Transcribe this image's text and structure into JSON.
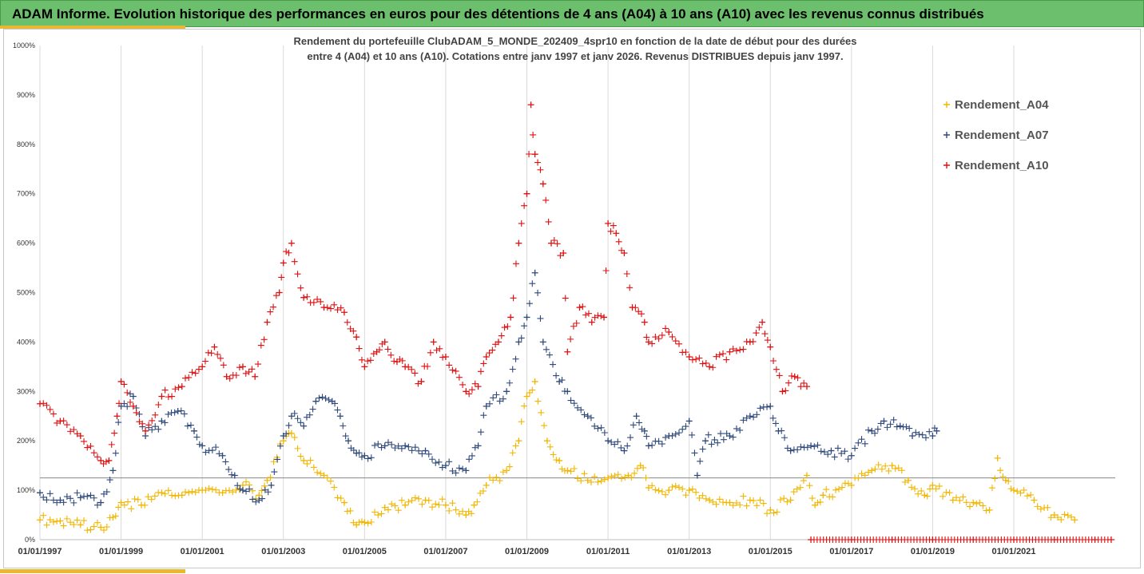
{
  "header": {
    "title": "ADAM Informe. Evolution historique des performances en euros pour des détentions de 4 ans (A04) à 10 ans (A10) avec les revenus connus distribués"
  },
  "colors": {
    "banner": "#6cbf6c",
    "accent_yellow": "#e8b830",
    "A04": "#f2b600",
    "A07": "#2f4a7a",
    "A10": "#e01010"
  },
  "chart_data": {
    "type": "scatter",
    "subtitle_line1": "Rendement du portefeuille ClubADAM_5_MONDE_202409_4spr10  en fonction de la date de début pour des durées",
    "subtitle_line2": "entre 4 (A04) et 10 ans (A10). Cotations entre janv 1997 et janv 2026. Revenus DISTRIBUES depuis janv 1997.",
    "ylim": [
      0,
      1000
    ],
    "y_ticks": [
      "0%",
      "100%",
      "200%",
      "300%",
      "400%",
      "500%",
      "600%",
      "700%",
      "800%",
      "900%",
      "1000%"
    ],
    "x_range": [
      1997.0,
      2023.5
    ],
    "x_ticks": [
      "01/01/1997",
      "01/01/1999",
      "01/01/2001",
      "01/01/2003",
      "01/01/2005",
      "01/01/2007",
      "01/01/2009",
      "01/01/2011",
      "01/01/2013",
      "01/01/2015",
      "01/01/2017",
      "01/01/2019",
      "01/01/2021"
    ],
    "grid": true,
    "reference_line_y": 125,
    "legend_position": "right",
    "marker": "+",
    "series": [
      {
        "name": "Rendement_A04",
        "color_key": "A04",
        "points": [
          [
            1997.0,
            40
          ],
          [
            1997.5,
            38
          ],
          [
            1998.0,
            30
          ],
          [
            1998.5,
            25
          ],
          [
            1998.8,
            45
          ],
          [
            1999.0,
            75
          ],
          [
            1999.5,
            70
          ],
          [
            2000.0,
            95
          ],
          [
            2000.5,
            90
          ],
          [
            2001.0,
            100
          ],
          [
            2001.5,
            95
          ],
          [
            2002.0,
            110
          ],
          [
            2002.4,
            90
          ],
          [
            2002.6,
            120
          ],
          [
            2003.0,
            200
          ],
          [
            2003.2,
            215
          ],
          [
            2003.5,
            160
          ],
          [
            2004.0,
            130
          ],
          [
            2004.5,
            75
          ],
          [
            2004.8,
            30
          ],
          [
            2005.0,
            35
          ],
          [
            2005.5,
            65
          ],
          [
            2006.0,
            70
          ],
          [
            2006.5,
            80
          ],
          [
            2007.0,
            70
          ],
          [
            2007.5,
            50
          ],
          [
            2007.7,
            70
          ],
          [
            2008.0,
            110
          ],
          [
            2008.5,
            140
          ],
          [
            2008.8,
            200
          ],
          [
            2009.0,
            290
          ],
          [
            2009.2,
            320
          ],
          [
            2009.5,
            200
          ],
          [
            2009.8,
            160
          ],
          [
            2010.0,
            140
          ],
          [
            2010.5,
            120
          ],
          [
            2011.0,
            125
          ],
          [
            2011.5,
            130
          ],
          [
            2011.8,
            150
          ],
          [
            2012.0,
            105
          ],
          [
            2012.5,
            100
          ],
          [
            2013.0,
            100
          ],
          [
            2013.5,
            80
          ],
          [
            2014.0,
            75
          ],
          [
            2014.5,
            80
          ],
          [
            2015.0,
            60
          ],
          [
            2015.5,
            80
          ],
          [
            2015.9,
            130
          ],
          [
            2016.1,
            70
          ],
          [
            2016.3,
            90
          ],
          [
            2017.0,
            110
          ],
          [
            2017.5,
            140
          ],
          [
            2018.0,
            150
          ],
          [
            2018.4,
            120
          ],
          [
            2018.8,
            90
          ],
          [
            2019.0,
            110
          ],
          [
            2019.5,
            80
          ],
          [
            2020.0,
            75
          ],
          [
            2020.4,
            60
          ],
          [
            2020.6,
            165
          ],
          [
            2020.8,
            120
          ],
          [
            2021.0,
            100
          ],
          [
            2021.5,
            80
          ],
          [
            2022.0,
            50
          ],
          [
            2022.5,
            40
          ]
        ]
      },
      {
        "name": "Rendement_A07",
        "color_key": "A07",
        "points": [
          [
            1997.0,
            95
          ],
          [
            1997.5,
            80
          ],
          [
            1998.0,
            85
          ],
          [
            1998.5,
            75
          ],
          [
            1998.8,
            140
          ],
          [
            1999.0,
            270
          ],
          [
            1999.3,
            290
          ],
          [
            1999.6,
            210
          ],
          [
            2000.0,
            240
          ],
          [
            2000.4,
            260
          ],
          [
            2000.8,
            220
          ],
          [
            2001.0,
            190
          ],
          [
            2001.5,
            170
          ],
          [
            2001.8,
            130
          ],
          [
            2002.0,
            100
          ],
          [
            2002.4,
            80
          ],
          [
            2002.7,
            110
          ],
          [
            2003.0,
            210
          ],
          [
            2003.2,
            250
          ],
          [
            2003.5,
            230
          ],
          [
            2003.8,
            280
          ],
          [
            2004.2,
            280
          ],
          [
            2004.4,
            250
          ],
          [
            2004.6,
            200
          ],
          [
            2004.8,
            175
          ],
          [
            2005.0,
            170
          ],
          [
            2005.5,
            190
          ],
          [
            2006.0,
            190
          ],
          [
            2006.5,
            180
          ],
          [
            2007.0,
            150
          ],
          [
            2007.5,
            140
          ],
          [
            2007.8,
            190
          ],
          [
            2008.0,
            270
          ],
          [
            2008.5,
            300
          ],
          [
            2008.8,
            400
          ],
          [
            2009.0,
            450
          ],
          [
            2009.2,
            540
          ],
          [
            2009.4,
            400
          ],
          [
            2009.8,
            320
          ],
          [
            2010.0,
            300
          ],
          [
            2010.5,
            250
          ],
          [
            2011.0,
            200
          ],
          [
            2011.4,
            180
          ],
          [
            2011.7,
            250
          ],
          [
            2011.9,
            220
          ],
          [
            2012.0,
            190
          ],
          [
            2012.5,
            210
          ],
          [
            2013.0,
            240
          ],
          [
            2013.2,
            130
          ],
          [
            2013.4,
            200
          ],
          [
            2014.0,
            210
          ],
          [
            2014.5,
            250
          ],
          [
            2015.0,
            270
          ],
          [
            2015.2,
            220
          ],
          [
            2015.5,
            180
          ],
          [
            2016.0,
            190
          ],
          [
            2016.5,
            180
          ],
          [
            2017.0,
            170
          ],
          [
            2017.5,
            220
          ],
          [
            2017.8,
            240
          ],
          [
            2018.2,
            230
          ],
          [
            2018.5,
            210
          ],
          [
            2019.0,
            210
          ],
          [
            2019.1,
            220
          ]
        ]
      },
      {
        "name": "Rendement_A10",
        "color_key": "A10",
        "points": [
          [
            1997.0,
            275
          ],
          [
            1997.5,
            240
          ],
          [
            1998.0,
            210
          ],
          [
            1998.5,
            160
          ],
          [
            1998.7,
            160
          ],
          [
            1998.9,
            250
          ],
          [
            1999.0,
            320
          ],
          [
            1999.3,
            270
          ],
          [
            1999.6,
            220
          ],
          [
            2000.0,
            290
          ],
          [
            2000.5,
            310
          ],
          [
            2001.0,
            350
          ],
          [
            2001.3,
            390
          ],
          [
            2001.6,
            330
          ],
          [
            2002.0,
            350
          ],
          [
            2002.3,
            330
          ],
          [
            2002.6,
            440
          ],
          [
            2002.9,
            500
          ],
          [
            2003.0,
            560
          ],
          [
            2003.2,
            600
          ],
          [
            2003.5,
            490
          ],
          [
            2004.0,
            470
          ],
          [
            2004.5,
            460
          ],
          [
            2004.8,
            410
          ],
          [
            2005.0,
            350
          ],
          [
            2005.3,
            380
          ],
          [
            2005.5,
            400
          ],
          [
            2005.8,
            360
          ],
          [
            2006.0,
            350
          ],
          [
            2006.4,
            320
          ],
          [
            2006.7,
            400
          ],
          [
            2007.0,
            370
          ],
          [
            2007.5,
            300
          ],
          [
            2007.8,
            310
          ],
          [
            2008.0,
            370
          ],
          [
            2008.3,
            400
          ],
          [
            2008.6,
            450
          ],
          [
            2008.8,
            600
          ],
          [
            2009.0,
            700
          ],
          [
            2009.1,
            880
          ],
          [
            2009.2,
            780
          ],
          [
            2009.4,
            720
          ],
          [
            2009.6,
            600
          ],
          [
            2009.9,
            580
          ],
          [
            2010.0,
            380
          ],
          [
            2010.3,
            470
          ],
          [
            2010.6,
            440
          ],
          [
            2010.9,
            450
          ],
          [
            2011.0,
            640
          ],
          [
            2011.2,
            620
          ],
          [
            2011.4,
            580
          ],
          [
            2011.6,
            470
          ],
          [
            2011.9,
            440
          ],
          [
            2012.0,
            400
          ],
          [
            2012.5,
            420
          ],
          [
            2013.0,
            370
          ],
          [
            2013.5,
            350
          ],
          [
            2014.0,
            380
          ],
          [
            2014.5,
            400
          ],
          [
            2014.8,
            440
          ],
          [
            2015.0,
            390
          ],
          [
            2015.3,
            300
          ],
          [
            2015.6,
            330
          ],
          [
            2015.9,
            310
          ]
        ]
      },
      {
        "name": "",
        "color_key": "A10",
        "points": [
          [
            2016.0,
            0
          ],
          [
            2017.0,
            0
          ],
          [
            2018.0,
            0
          ],
          [
            2019.0,
            0
          ],
          [
            2020.0,
            0
          ],
          [
            2021.0,
            0
          ],
          [
            2022.0,
            0
          ],
          [
            2023.0,
            0
          ],
          [
            2023.4,
            0
          ]
        ]
      }
    ]
  }
}
